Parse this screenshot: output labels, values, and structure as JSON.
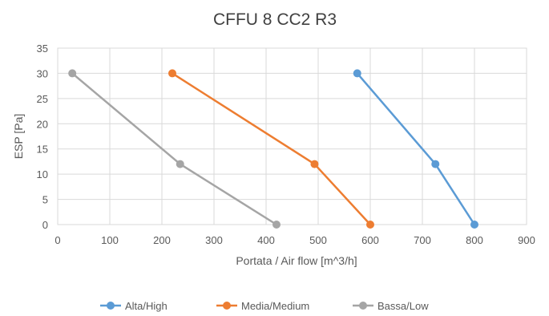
{
  "chart_data": {
    "type": "line",
    "title": "CFFU 8 CC2 R3",
    "xlabel": "Portata / Air flow [m^3/h]",
    "ylabel": "ESP [Pa]",
    "xlim": [
      0,
      900
    ],
    "ylim": [
      0,
      35
    ],
    "xticks": [
      0,
      100,
      200,
      300,
      400,
      500,
      600,
      700,
      800,
      900
    ],
    "yticks": [
      0,
      5,
      10,
      15,
      20,
      25,
      30,
      35
    ],
    "grid": true,
    "legend_position": "bottom",
    "series": [
      {
        "name": "Alta/High",
        "color": "#5b9bd5",
        "x": [
          575,
          725,
          800
        ],
        "y": [
          30,
          12,
          0
        ]
      },
      {
        "name": "Media/Medium",
        "color": "#ed7d31",
        "x": [
          220,
          493,
          600
        ],
        "y": [
          30,
          12,
          0
        ]
      },
      {
        "name": "Bassa/Low",
        "color": "#a5a5a5",
        "x": [
          28,
          235,
          420
        ],
        "y": [
          30,
          12,
          0
        ]
      }
    ]
  }
}
